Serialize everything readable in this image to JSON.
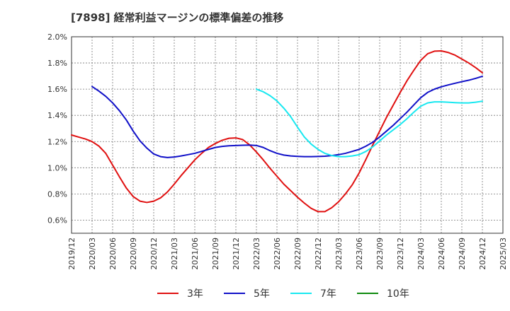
{
  "chart_data": {
    "type": "line",
    "title": "[7898]  経常利益マージンの標準偏差の推移",
    "xlabel": "",
    "ylabel": "",
    "x_ticks": [
      "2019/12",
      "2020/03",
      "2020/06",
      "2020/09",
      "2020/12",
      "2021/03",
      "2021/06",
      "2021/09",
      "2021/12",
      "2022/03",
      "2022/06",
      "2022/09",
      "2022/12",
      "2023/03",
      "2023/06",
      "2023/09",
      "2023/12",
      "2024/03",
      "2024/06",
      "2024/09",
      "2024/12",
      "2025/03"
    ],
    "y_ticks": [
      {
        "value": 0.6,
        "label": "0.6%"
      },
      {
        "value": 0.8,
        "label": "0.8%"
      },
      {
        "value": 1.0,
        "label": "1.0%"
      },
      {
        "value": 1.2,
        "label": "1.2%"
      },
      {
        "value": 1.4,
        "label": "1.4%"
      },
      {
        "value": 1.6,
        "label": "1.6%"
      },
      {
        "value": 1.8,
        "label": "1.8%"
      },
      {
        "value": 2.0,
        "label": "2.0%"
      }
    ],
    "ylim": [
      0.5,
      2.0
    ],
    "grid": true,
    "legend_position": "bottom",
    "series": [
      {
        "name": "3年",
        "color": "#e01010",
        "points": [
          [
            "2019/12",
            1.25
          ],
          [
            "2020/01",
            1.235
          ],
          [
            "2020/02",
            1.22
          ],
          [
            "2020/03",
            1.2
          ],
          [
            "2020/04",
            1.165
          ],
          [
            "2020/05",
            1.11
          ],
          [
            "2020/06",
            1.02
          ],
          [
            "2020/07",
            0.93
          ],
          [
            "2020/08",
            0.845
          ],
          [
            "2020/09",
            0.78
          ],
          [
            "2020/10",
            0.745
          ],
          [
            "2020/11",
            0.735
          ],
          [
            "2020/12",
            0.745
          ],
          [
            "2021/01",
            0.77
          ],
          [
            "2021/02",
            0.815
          ],
          [
            "2021/03",
            0.875
          ],
          [
            "2021/04",
            0.94
          ],
          [
            "2021/05",
            1.0
          ],
          [
            "2021/06",
            1.06
          ],
          [
            "2021/07",
            1.11
          ],
          [
            "2021/08",
            1.155
          ],
          [
            "2021/09",
            1.185
          ],
          [
            "2021/10",
            1.21
          ],
          [
            "2021/11",
            1.225
          ],
          [
            "2021/12",
            1.228
          ],
          [
            "2022/01",
            1.215
          ],
          [
            "2022/02",
            1.175
          ],
          [
            "2022/03",
            1.12
          ],
          [
            "2022/04",
            1.06
          ],
          [
            "2022/05",
            0.995
          ],
          [
            "2022/06",
            0.935
          ],
          [
            "2022/07",
            0.875
          ],
          [
            "2022/08",
            0.825
          ],
          [
            "2022/09",
            0.775
          ],
          [
            "2022/10",
            0.73
          ],
          [
            "2022/11",
            0.69
          ],
          [
            "2022/12",
            0.665
          ],
          [
            "2023/01",
            0.665
          ],
          [
            "2023/02",
            0.695
          ],
          [
            "2023/03",
            0.74
          ],
          [
            "2023/04",
            0.8
          ],
          [
            "2023/05",
            0.87
          ],
          [
            "2023/06",
            0.96
          ],
          [
            "2023/07",
            1.065
          ],
          [
            "2023/08",
            1.175
          ],
          [
            "2023/09",
            1.28
          ],
          [
            "2023/10",
            1.385
          ],
          [
            "2023/11",
            1.48
          ],
          [
            "2023/12",
            1.575
          ],
          [
            "2024/01",
            1.665
          ],
          [
            "2024/02",
            1.745
          ],
          [
            "2024/03",
            1.82
          ],
          [
            "2024/04",
            1.87
          ],
          [
            "2024/05",
            1.89
          ],
          [
            "2024/06",
            1.892
          ],
          [
            "2024/07",
            1.88
          ],
          [
            "2024/08",
            1.86
          ],
          [
            "2024/09",
            1.83
          ],
          [
            "2024/10",
            1.8
          ],
          [
            "2024/11",
            1.765
          ],
          [
            "2024/12",
            1.725
          ]
        ]
      },
      {
        "name": "5年",
        "color": "#1010c8",
        "points": [
          [
            "2020/03",
            1.62
          ],
          [
            "2020/04",
            1.585
          ],
          [
            "2020/05",
            1.545
          ],
          [
            "2020/06",
            1.495
          ],
          [
            "2020/07",
            1.435
          ],
          [
            "2020/08",
            1.365
          ],
          [
            "2020/09",
            1.28
          ],
          [
            "2020/10",
            1.205
          ],
          [
            "2020/11",
            1.15
          ],
          [
            "2020/12",
            1.105
          ],
          [
            "2021/01",
            1.085
          ],
          [
            "2021/02",
            1.078
          ],
          [
            "2021/03",
            1.082
          ],
          [
            "2021/04",
            1.09
          ],
          [
            "2021/05",
            1.1
          ],
          [
            "2021/06",
            1.11
          ],
          [
            "2021/07",
            1.125
          ],
          [
            "2021/08",
            1.14
          ],
          [
            "2021/09",
            1.155
          ],
          [
            "2021/10",
            1.163
          ],
          [
            "2021/11",
            1.168
          ],
          [
            "2021/12",
            1.17
          ],
          [
            "2022/01",
            1.172
          ],
          [
            "2022/02",
            1.173
          ],
          [
            "2022/03",
            1.17
          ],
          [
            "2022/04",
            1.155
          ],
          [
            "2022/05",
            1.13
          ],
          [
            "2022/06",
            1.11
          ],
          [
            "2022/07",
            1.097
          ],
          [
            "2022/08",
            1.09
          ],
          [
            "2022/09",
            1.087
          ],
          [
            "2022/10",
            1.085
          ],
          [
            "2022/11",
            1.085
          ],
          [
            "2022/12",
            1.086
          ],
          [
            "2023/01",
            1.088
          ],
          [
            "2023/02",
            1.093
          ],
          [
            "2023/03",
            1.1
          ],
          [
            "2023/04",
            1.11
          ],
          [
            "2023/05",
            1.125
          ],
          [
            "2023/06",
            1.14
          ],
          [
            "2023/07",
            1.165
          ],
          [
            "2023/08",
            1.195
          ],
          [
            "2023/09",
            1.235
          ],
          [
            "2023/10",
            1.28
          ],
          [
            "2023/11",
            1.325
          ],
          [
            "2023/12",
            1.375
          ],
          [
            "2024/01",
            1.425
          ],
          [
            "2024/02",
            1.48
          ],
          [
            "2024/03",
            1.535
          ],
          [
            "2024/04",
            1.575
          ],
          [
            "2024/05",
            1.6
          ],
          [
            "2024/06",
            1.618
          ],
          [
            "2024/07",
            1.632
          ],
          [
            "2024/08",
            1.645
          ],
          [
            "2024/09",
            1.657
          ],
          [
            "2024/10",
            1.668
          ],
          [
            "2024/11",
            1.682
          ],
          [
            "2024/12",
            1.698
          ]
        ]
      },
      {
        "name": "7年",
        "color": "#18e8f0",
        "points": [
          [
            "2022/03",
            1.6
          ],
          [
            "2022/04",
            1.58
          ],
          [
            "2022/05",
            1.55
          ],
          [
            "2022/06",
            1.51
          ],
          [
            "2022/07",
            1.455
          ],
          [
            "2022/08",
            1.39
          ],
          [
            "2022/09",
            1.31
          ],
          [
            "2022/10",
            1.235
          ],
          [
            "2022/11",
            1.18
          ],
          [
            "2022/12",
            1.14
          ],
          [
            "2023/01",
            1.11
          ],
          [
            "2023/02",
            1.093
          ],
          [
            "2023/03",
            1.085
          ],
          [
            "2023/04",
            1.085
          ],
          [
            "2023/05",
            1.09
          ],
          [
            "2023/06",
            1.1
          ],
          [
            "2023/07",
            1.125
          ],
          [
            "2023/08",
            1.16
          ],
          [
            "2023/09",
            1.205
          ],
          [
            "2023/10",
            1.25
          ],
          [
            "2023/11",
            1.29
          ],
          [
            "2023/12",
            1.33
          ],
          [
            "2024/01",
            1.375
          ],
          [
            "2024/02",
            1.425
          ],
          [
            "2024/03",
            1.47
          ],
          [
            "2024/04",
            1.495
          ],
          [
            "2024/05",
            1.503
          ],
          [
            "2024/06",
            1.503
          ],
          [
            "2024/07",
            1.5
          ],
          [
            "2024/08",
            1.497
          ],
          [
            "2024/09",
            1.495
          ],
          [
            "2024/10",
            1.495
          ],
          [
            "2024/11",
            1.5
          ],
          [
            "2024/12",
            1.508
          ]
        ]
      },
      {
        "name": "10年",
        "color": "#0e8a0e",
        "points": []
      }
    ]
  }
}
